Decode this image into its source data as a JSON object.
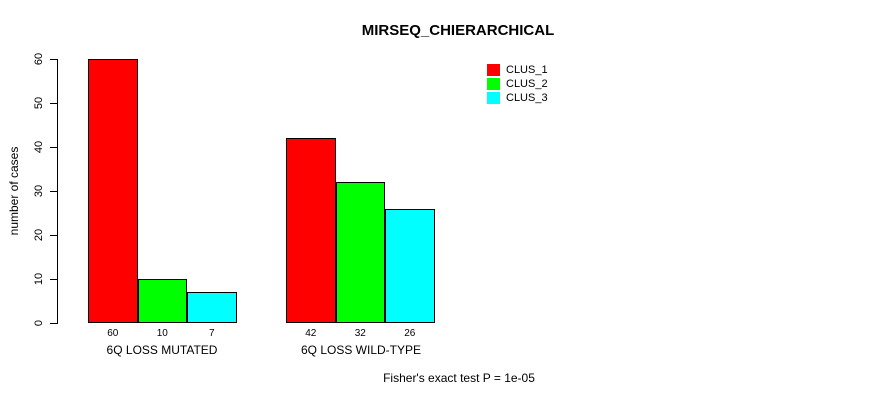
{
  "title": "MIRSEQ_CHIERARCHICAL",
  "footer": "Fisher's exact test P = 1e-05",
  "chart_data": {
    "type": "bar",
    "title": "MIRSEQ_CHIERARCHICAL",
    "xlabel": "",
    "ylabel": "number of cases",
    "ylim": [
      0,
      60
    ],
    "yticks": [
      0,
      10,
      20,
      30,
      40,
      50,
      60
    ],
    "categories": [
      "6Q LOSS MUTATED",
      "6Q LOSS WILD-TYPE"
    ],
    "series": [
      {
        "name": "CLUS_1",
        "color": "#FF0000",
        "values": [
          60,
          42
        ]
      },
      {
        "name": "CLUS_2",
        "color": "#00FF00",
        "values": [
          10,
          32
        ]
      },
      {
        "name": "CLUS_3",
        "color": "#00FFFF",
        "values": [
          7,
          26
        ]
      }
    ],
    "value_labels_shown": true,
    "grid": false,
    "legend_position": "top-right",
    "annotation": "Fisher's exact test P = 1e-05",
    "bar_border_color": "#000000",
    "axis_color": "#000000",
    "background_color": "#FFFFFF"
  }
}
